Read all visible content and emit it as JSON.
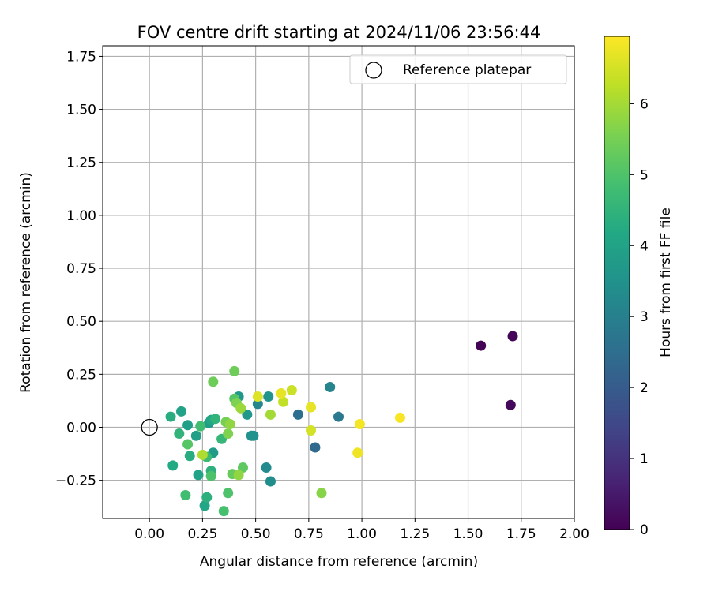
{
  "chart_data": {
    "type": "scatter",
    "title": "FOV centre drift starting at 2024/11/06 23:56:44",
    "xlabel": "Angular distance from reference (arcmin)",
    "ylabel": "Rotation from reference (arcmin)",
    "xlim": [
      -0.22,
      2.0
    ],
    "ylim": [
      -0.43,
      1.8
    ],
    "xticks": [
      0.0,
      0.25,
      0.5,
      0.75,
      1.0,
      1.25,
      1.5,
      1.75,
      2.0
    ],
    "xtick_labels": [
      "0.00",
      "0.25",
      "0.50",
      "0.75",
      "1.00",
      "1.25",
      "1.50",
      "1.75",
      "2.00"
    ],
    "yticks": [
      -0.25,
      0.0,
      0.25,
      0.5,
      0.75,
      1.0,
      1.25,
      1.5,
      1.75
    ],
    "ytick_labels": [
      "−0.25",
      "0.00",
      "0.25",
      "0.50",
      "0.75",
      "1.00",
      "1.25",
      "1.50",
      "1.75"
    ],
    "grid": true,
    "legend": {
      "placement": "top-right",
      "entries": [
        {
          "label": "Reference platepar",
          "marker": "open-circle",
          "x": 0.0,
          "y": 0.0
        }
      ]
    },
    "colorbar": {
      "label": "Hours from first FF file",
      "colormap": "viridis",
      "range": [
        0,
        6.95
      ],
      "ticks": [
        0,
        1,
        2,
        3,
        4,
        5,
        6
      ],
      "tick_labels": [
        "0",
        "1",
        "2",
        "3",
        "4",
        "5",
        "6"
      ]
    },
    "points": [
      {
        "x": 1.56,
        "y": 0.385,
        "c": 0.05
      },
      {
        "x": 1.71,
        "y": 0.43,
        "c": 0.1
      },
      {
        "x": 1.7,
        "y": 0.105,
        "c": 0.15
      },
      {
        "x": 0.78,
        "y": -0.095,
        "c": 2.4
      },
      {
        "x": 0.7,
        "y": 0.06,
        "c": 2.5
      },
      {
        "x": 0.89,
        "y": 0.05,
        "c": 2.8
      },
      {
        "x": 0.85,
        "y": 0.19,
        "c": 3.1
      },
      {
        "x": 0.51,
        "y": 0.11,
        "c": 3.2
      },
      {
        "x": 0.55,
        "y": -0.19,
        "c": 3.3
      },
      {
        "x": 0.57,
        "y": -0.255,
        "c": 3.4
      },
      {
        "x": 0.48,
        "y": -0.04,
        "c": 3.5
      },
      {
        "x": 0.49,
        "y": -0.04,
        "c": 3.5
      },
      {
        "x": 0.56,
        "y": 0.145,
        "c": 3.6
      },
      {
        "x": 0.42,
        "y": 0.145,
        "c": 3.7
      },
      {
        "x": 0.46,
        "y": 0.06,
        "c": 3.7
      },
      {
        "x": 0.3,
        "y": -0.12,
        "c": 3.8
      },
      {
        "x": 0.28,
        "y": 0.02,
        "c": 3.8
      },
      {
        "x": 0.22,
        "y": -0.04,
        "c": 3.9
      },
      {
        "x": 0.18,
        "y": 0.01,
        "c": 3.9
      },
      {
        "x": 0.15,
        "y": 0.075,
        "c": 4.0
      },
      {
        "x": 0.23,
        "y": -0.225,
        "c": 4.0
      },
      {
        "x": 0.26,
        "y": -0.37,
        "c": 4.1
      },
      {
        "x": 0.29,
        "y": 0.035,
        "c": 4.1
      },
      {
        "x": 0.11,
        "y": -0.18,
        "c": 4.2
      },
      {
        "x": 0.1,
        "y": 0.05,
        "c": 4.3
      },
      {
        "x": 0.19,
        "y": -0.135,
        "c": 4.3
      },
      {
        "x": 0.27,
        "y": -0.33,
        "c": 4.4
      },
      {
        "x": 0.29,
        "y": -0.205,
        "c": 4.4
      },
      {
        "x": 0.14,
        "y": -0.03,
        "c": 4.5
      },
      {
        "x": 0.31,
        "y": 0.04,
        "c": 4.5
      },
      {
        "x": 0.34,
        "y": -0.055,
        "c": 4.6
      },
      {
        "x": 0.27,
        "y": -0.14,
        "c": 4.7
      },
      {
        "x": 0.17,
        "y": -0.32,
        "c": 4.8
      },
      {
        "x": 0.24,
        "y": 0.005,
        "c": 4.8
      },
      {
        "x": 0.35,
        "y": -0.395,
        "c": 4.9
      },
      {
        "x": 0.29,
        "y": -0.23,
        "c": 5.0
      },
      {
        "x": 0.37,
        "y": -0.31,
        "c": 5.0
      },
      {
        "x": 0.18,
        "y": -0.08,
        "c": 5.1
      },
      {
        "x": 0.4,
        "y": 0.135,
        "c": 5.1
      },
      {
        "x": 0.44,
        "y": -0.19,
        "c": 5.2
      },
      {
        "x": 0.39,
        "y": -0.22,
        "c": 5.3
      },
      {
        "x": 0.3,
        "y": 0.215,
        "c": 5.4
      },
      {
        "x": 0.4,
        "y": 0.265,
        "c": 5.4
      },
      {
        "x": 0.36,
        "y": 0.025,
        "c": 5.5
      },
      {
        "x": 0.37,
        "y": -0.03,
        "c": 5.6
      },
      {
        "x": 0.41,
        "y": 0.115,
        "c": 5.6
      },
      {
        "x": 0.81,
        "y": -0.31,
        "c": 5.7
      },
      {
        "x": 0.42,
        "y": -0.225,
        "c": 5.8
      },
      {
        "x": 0.38,
        "y": 0.015,
        "c": 5.8
      },
      {
        "x": 0.43,
        "y": 0.09,
        "c": 5.9
      },
      {
        "x": 0.57,
        "y": 0.06,
        "c": 6.0
      },
      {
        "x": 0.25,
        "y": -0.13,
        "c": 6.1
      },
      {
        "x": 0.63,
        "y": 0.12,
        "c": 6.3
      },
      {
        "x": 0.67,
        "y": 0.175,
        "c": 6.4
      },
      {
        "x": 0.76,
        "y": -0.015,
        "c": 6.5
      },
      {
        "x": 0.51,
        "y": 0.145,
        "c": 6.6
      },
      {
        "x": 0.62,
        "y": 0.16,
        "c": 6.7
      },
      {
        "x": 0.76,
        "y": 0.095,
        "c": 6.7
      },
      {
        "x": 0.98,
        "y": -0.12,
        "c": 6.8
      },
      {
        "x": 0.99,
        "y": 0.015,
        "c": 6.85
      },
      {
        "x": 1.18,
        "y": 0.045,
        "c": 6.9
      }
    ]
  }
}
